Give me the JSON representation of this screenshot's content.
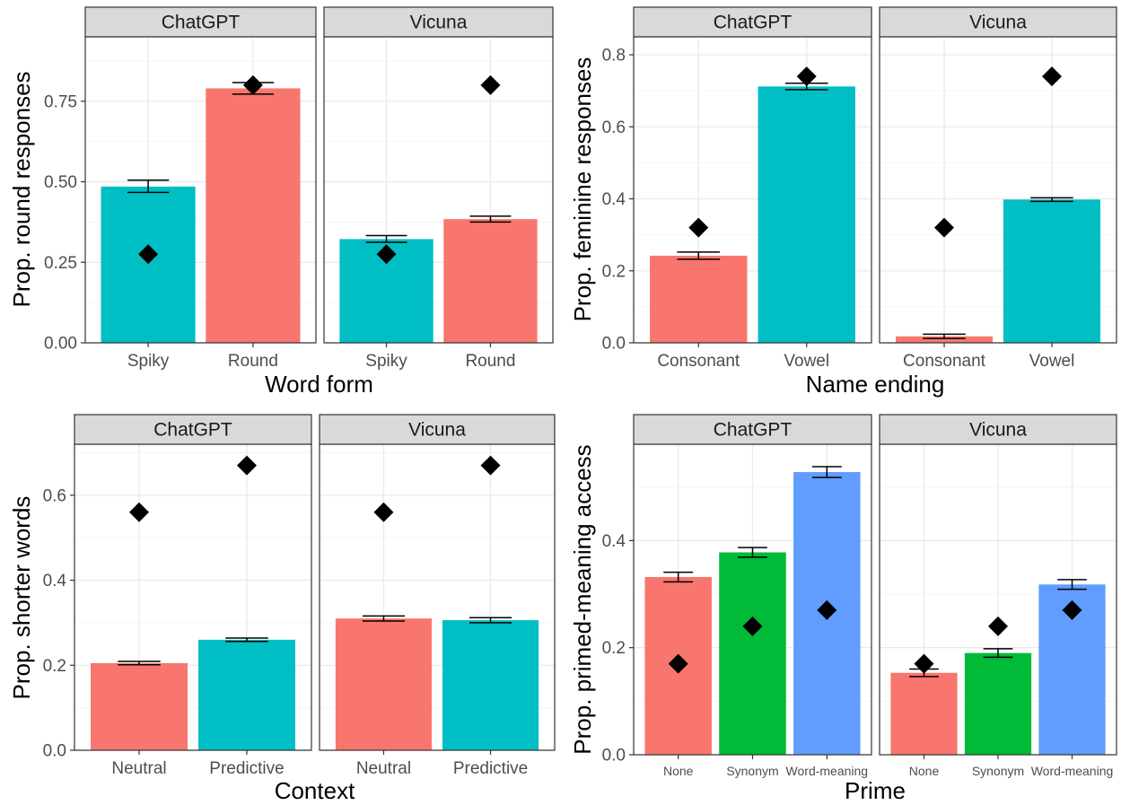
{
  "colors": {
    "red": "#F8766D",
    "teal": "#00BFC4",
    "green": "#00BA38",
    "blue": "#619CFF",
    "strip_fill": "#D9D9D9",
    "grid_major": "#EBEBEB",
    "grid_minor": "#F5F5F5"
  },
  "chart_data": [
    {
      "type": "bar",
      "xlabel": "Word form",
      "ylabel": "Prop. round responses",
      "ylim": [
        0,
        0.95
      ],
      "yticks": [
        "0.00",
        "0.25",
        "0.50",
        "0.75"
      ],
      "marker": "diamond",
      "facets": [
        {
          "name": "ChatGPT",
          "categories": [
            "Spiky",
            "Round"
          ],
          "values": [
            0.485,
            0.79
          ],
          "error_bars": [
            [
              0.467,
              0.505
            ],
            [
              0.772,
              0.808
            ]
          ],
          "markers": [
            0.275,
            0.8
          ],
          "bar_colors": [
            "teal",
            "red"
          ]
        },
        {
          "name": "Vicuna",
          "categories": [
            "Spiky",
            "Round"
          ],
          "values": [
            0.322,
            0.384
          ],
          "error_bars": [
            [
              0.312,
              0.333
            ],
            [
              0.375,
              0.393
            ]
          ],
          "markers": [
            0.275,
            0.8
          ],
          "bar_colors": [
            "teal",
            "red"
          ]
        }
      ]
    },
    {
      "type": "bar",
      "xlabel": "Name ending",
      "ylabel": "Prop. feminine responses",
      "ylim": [
        0,
        0.85
      ],
      "yticks": [
        "0.0",
        "0.2",
        "0.4",
        "0.6",
        "0.8"
      ],
      "marker": "diamond",
      "facets": [
        {
          "name": "ChatGPT",
          "categories": [
            "Consonant",
            "Vowel"
          ],
          "values": [
            0.242,
            0.712
          ],
          "error_bars": [
            [
              0.232,
              0.252
            ],
            [
              0.703,
              0.721
            ]
          ],
          "markers": [
            0.32,
            0.74
          ],
          "bar_colors": [
            "red",
            "teal"
          ]
        },
        {
          "name": "Vicuna",
          "categories": [
            "Consonant",
            "Vowel"
          ],
          "values": [
            0.018,
            0.398
          ],
          "error_bars": [
            [
              0.012,
              0.024
            ],
            [
              0.393,
              0.403
            ]
          ],
          "markers": [
            0.32,
            0.74
          ],
          "bar_colors": [
            "red",
            "teal"
          ]
        }
      ]
    },
    {
      "type": "bar",
      "xlabel": "Context",
      "ylabel": "Prop. shorter words",
      "ylim": [
        0,
        0.72
      ],
      "yticks": [
        "0.0",
        "0.2",
        "0.4",
        "0.6"
      ],
      "marker": "diamond",
      "facets": [
        {
          "name": "ChatGPT",
          "categories": [
            "Neutral",
            "Predictive"
          ],
          "values": [
            0.205,
            0.26
          ],
          "error_bars": [
            [
              0.201,
              0.209
            ],
            [
              0.256,
              0.264
            ]
          ],
          "markers": [
            0.56,
            0.67
          ],
          "bar_colors": [
            "red",
            "teal"
          ]
        },
        {
          "name": "Vicuna",
          "categories": [
            "Neutral",
            "Predictive"
          ],
          "values": [
            0.31,
            0.306
          ],
          "error_bars": [
            [
              0.304,
              0.316
            ],
            [
              0.3,
              0.312
            ]
          ],
          "markers": [
            0.56,
            0.67
          ],
          "bar_colors": [
            "red",
            "teal"
          ]
        }
      ]
    },
    {
      "type": "bar",
      "xlabel": "Prime",
      "ylabel": "Prop. primed-meaning access",
      "ylim": [
        0,
        0.58
      ],
      "yticks": [
        "0.0",
        "0.2",
        "0.4"
      ],
      "small_xticks": true,
      "marker": "diamond",
      "facets": [
        {
          "name": "ChatGPT",
          "categories": [
            "None",
            "Synonym",
            "Word-meaning"
          ],
          "values": [
            0.332,
            0.378,
            0.528
          ],
          "error_bars": [
            [
              0.323,
              0.341
            ],
            [
              0.369,
              0.387
            ],
            [
              0.518,
              0.538
            ]
          ],
          "markers": [
            0.17,
            0.24,
            0.27
          ],
          "bar_colors": [
            "red",
            "green",
            "blue"
          ]
        },
        {
          "name": "Vicuna",
          "categories": [
            "None",
            "Synonym",
            "Word-meaning"
          ],
          "values": [
            0.153,
            0.19,
            0.318
          ],
          "error_bars": [
            [
              0.146,
              0.16
            ],
            [
              0.182,
              0.198
            ],
            [
              0.309,
              0.327
            ]
          ],
          "markers": [
            0.17,
            0.24,
            0.27
          ],
          "bar_colors": [
            "red",
            "green",
            "blue"
          ]
        }
      ]
    }
  ]
}
